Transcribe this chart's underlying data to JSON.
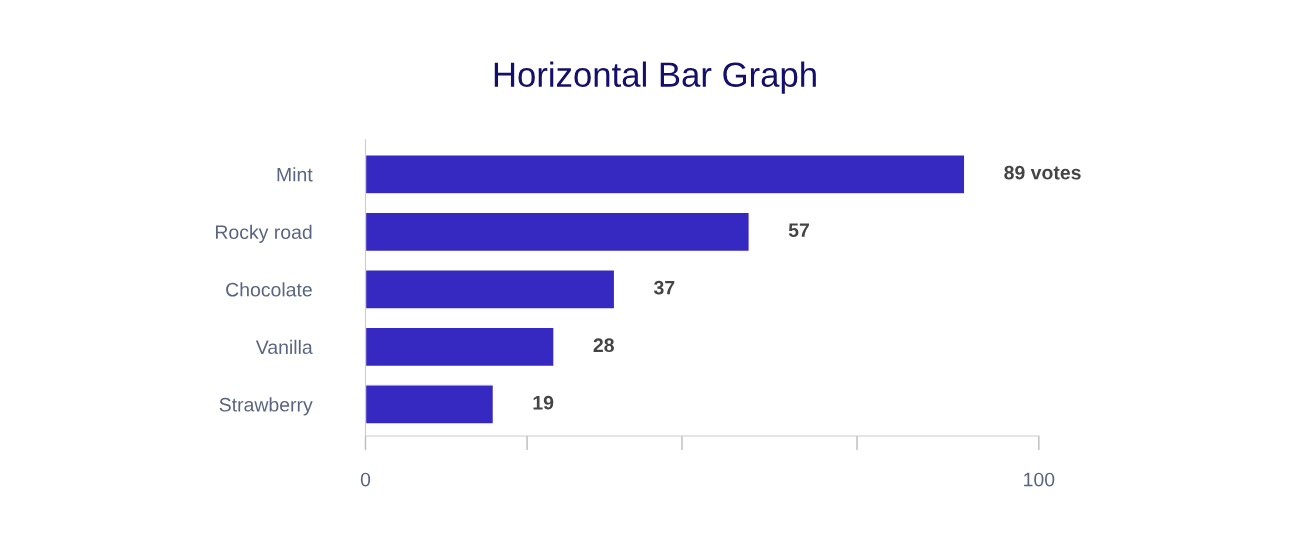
{
  "chart_data": {
    "type": "bar",
    "orientation": "horizontal",
    "title": "Horizontal Bar Graph",
    "categories": [
      "Mint",
      "Rocky road",
      "Chocolate",
      "Vanilla",
      "Strawberry"
    ],
    "values": [
      89,
      57,
      37,
      28,
      19
    ],
    "value_labels": [
      "89 votes",
      "57",
      "37",
      "28",
      "19"
    ],
    "color": "#3629c2",
    "xlim": [
      0,
      100
    ],
    "xticks": [
      0,
      {
        "value": 24,
        "label": null
      },
      {
        "value": 47,
        "label": null
      },
      {
        "value": 73,
        "label": null
      },
      100
    ],
    "grid": false,
    "legend": false
  }
}
